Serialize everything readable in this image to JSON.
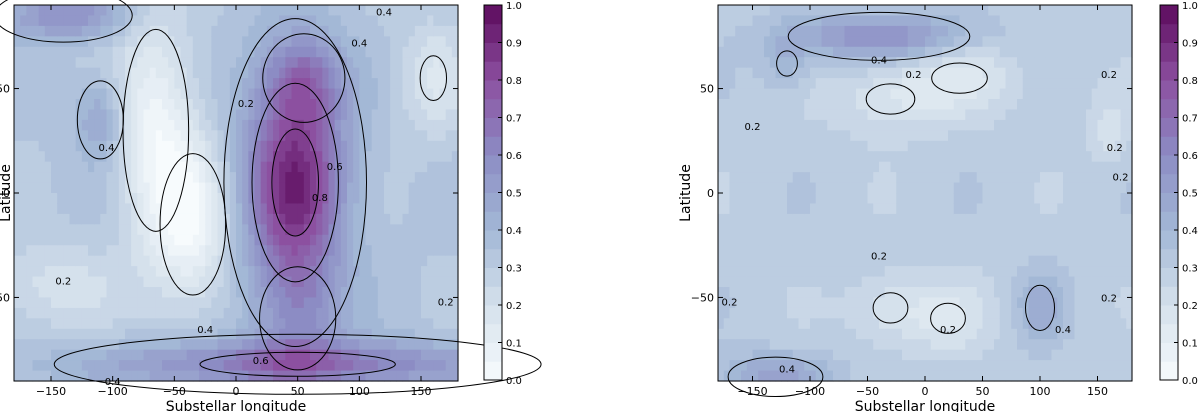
{
  "chart_data": [
    {
      "type": "heatmap",
      "title": "",
      "xlabel": "Substellar longitude",
      "ylabel": "Latitude",
      "xlim": [
        -180,
        180
      ],
      "ylim": [
        -90,
        90
      ],
      "xticks": [
        -150,
        -100,
        -50,
        0,
        50,
        100,
        150
      ],
      "yticks": [
        -50,
        0,
        50
      ],
      "colorbar": {
        "min": 0.0,
        "max": 1.0,
        "ticks": [
          0.0,
          0.1,
          0.2,
          0.3,
          0.4,
          0.5,
          0.6,
          0.7,
          0.8,
          0.9,
          1.0
        ]
      },
      "background_level": 0.33,
      "features": [
        {
          "lon": 48,
          "lat": 5,
          "value": 0.92,
          "sx": 28,
          "sy": 38
        },
        {
          "lon": 55,
          "lat": 55,
          "value": 0.55,
          "sx": 22,
          "sy": 14
        },
        {
          "lon": -65,
          "lat": 30,
          "value": 0.06,
          "sx": 22,
          "sy": 40
        },
        {
          "lon": -35,
          "lat": -15,
          "value": 0.06,
          "sx": 22,
          "sy": 28
        },
        {
          "lon": -110,
          "lat": 35,
          "value": 0.5,
          "sx": 14,
          "sy": 14
        },
        {
          "lon": -140,
          "lat": 85,
          "value": 0.58,
          "sx": 35,
          "sy": 8
        },
        {
          "lon": 50,
          "lat": -82,
          "value": 0.68,
          "sx": 110,
          "sy": 8
        },
        {
          "lon": 50,
          "lat": -60,
          "value": 0.48,
          "sx": 25,
          "sy": 20
        },
        {
          "lon": -150,
          "lat": -45,
          "value": 0.2,
          "sx": 40,
          "sy": 15
        },
        {
          "lon": 160,
          "lat": 55,
          "value": 0.18,
          "sx": 20,
          "sy": 20
        }
      ],
      "contours": [
        {
          "label": "0.2",
          "label_pos": [
            8,
            43
          ]
        },
        {
          "label": "0.2",
          "label_pos": [
            -140,
            -42
          ]
        },
        {
          "label": "0.2",
          "label_pos": [
            170,
            -52
          ]
        },
        {
          "label": "0.4",
          "label_pos": [
            -105,
            22
          ]
        },
        {
          "label": "0.4",
          "label_pos": [
            -25,
            -65
          ]
        },
        {
          "label": "0.4",
          "label_pos": [
            120,
            87
          ]
        },
        {
          "label": "0.4",
          "label_pos": [
            100,
            72
          ]
        },
        {
          "label": "0.4",
          "label_pos": [
            -100,
            -90
          ]
        },
        {
          "label": "0.6",
          "label_pos": [
            80,
            13
          ]
        },
        {
          "label": "0.6",
          "label_pos": [
            20,
            -80
          ]
        },
        {
          "label": "0.8",
          "label_pos": [
            68,
            -2
          ]
        }
      ]
    },
    {
      "type": "heatmap",
      "title": "",
      "xlabel": "Substellar longitude",
      "ylabel": "Latitude",
      "xlim": [
        -180,
        180
      ],
      "ylim": [
        -90,
        90
      ],
      "xticks": [
        -150,
        -100,
        -50,
        0,
        50,
        100,
        150
      ],
      "yticks": [
        -50,
        0,
        50
      ],
      "colorbar": {
        "min": 0.0,
        "max": 1.0,
        "ticks": [
          0.0,
          0.1,
          0.2,
          0.3,
          0.4,
          0.5,
          0.6,
          0.7,
          0.8,
          0.9,
          1.0
        ]
      },
      "background_level": 0.3,
      "features": [
        {
          "lon": -40,
          "lat": 75,
          "value": 0.58,
          "sx": 55,
          "sy": 8
        },
        {
          "lon": -120,
          "lat": 62,
          "value": 0.42,
          "sx": 15,
          "sy": 10
        },
        {
          "lon": -30,
          "lat": 45,
          "value": 0.18,
          "sx": 35,
          "sy": 12
        },
        {
          "lon": 30,
          "lat": 55,
          "value": 0.18,
          "sx": 40,
          "sy": 12
        },
        {
          "lon": -130,
          "lat": -88,
          "value": 0.5,
          "sx": 35,
          "sy": 8
        },
        {
          "lon": 100,
          "lat": -55,
          "value": 0.45,
          "sx": 14,
          "sy": 12
        },
        {
          "lon": -30,
          "lat": -55,
          "value": 0.18,
          "sx": 25,
          "sy": 12
        },
        {
          "lon": 20,
          "lat": -60,
          "value": 0.18,
          "sx": 25,
          "sy": 12
        },
        {
          "lon": 160,
          "lat": 30,
          "value": 0.2,
          "sx": 12,
          "sy": 12
        }
      ],
      "contours": [
        {
          "label": "0.4",
          "label_pos": [
            -40,
            64
          ]
        },
        {
          "label": "0.2",
          "label_pos": [
            -10,
            57
          ]
        },
        {
          "label": "0.2",
          "label_pos": [
            -150,
            32
          ]
        },
        {
          "label": "0.2",
          "label_pos": [
            160,
            57
          ]
        },
        {
          "label": "0.2",
          "label_pos": [
            165,
            22
          ]
        },
        {
          "label": "0.2",
          "label_pos": [
            170,
            8
          ]
        },
        {
          "label": "0.2",
          "label_pos": [
            -40,
            -30
          ]
        },
        {
          "label": "0.2",
          "label_pos": [
            -170,
            -52
          ]
        },
        {
          "label": "0.2",
          "label_pos": [
            20,
            -65
          ]
        },
        {
          "label": "0.2",
          "label_pos": [
            160,
            -50
          ]
        },
        {
          "label": "0.4",
          "label_pos": [
            -120,
            -84
          ]
        },
        {
          "label": "0.4",
          "label_pos": [
            120,
            -65
          ]
        }
      ]
    }
  ]
}
